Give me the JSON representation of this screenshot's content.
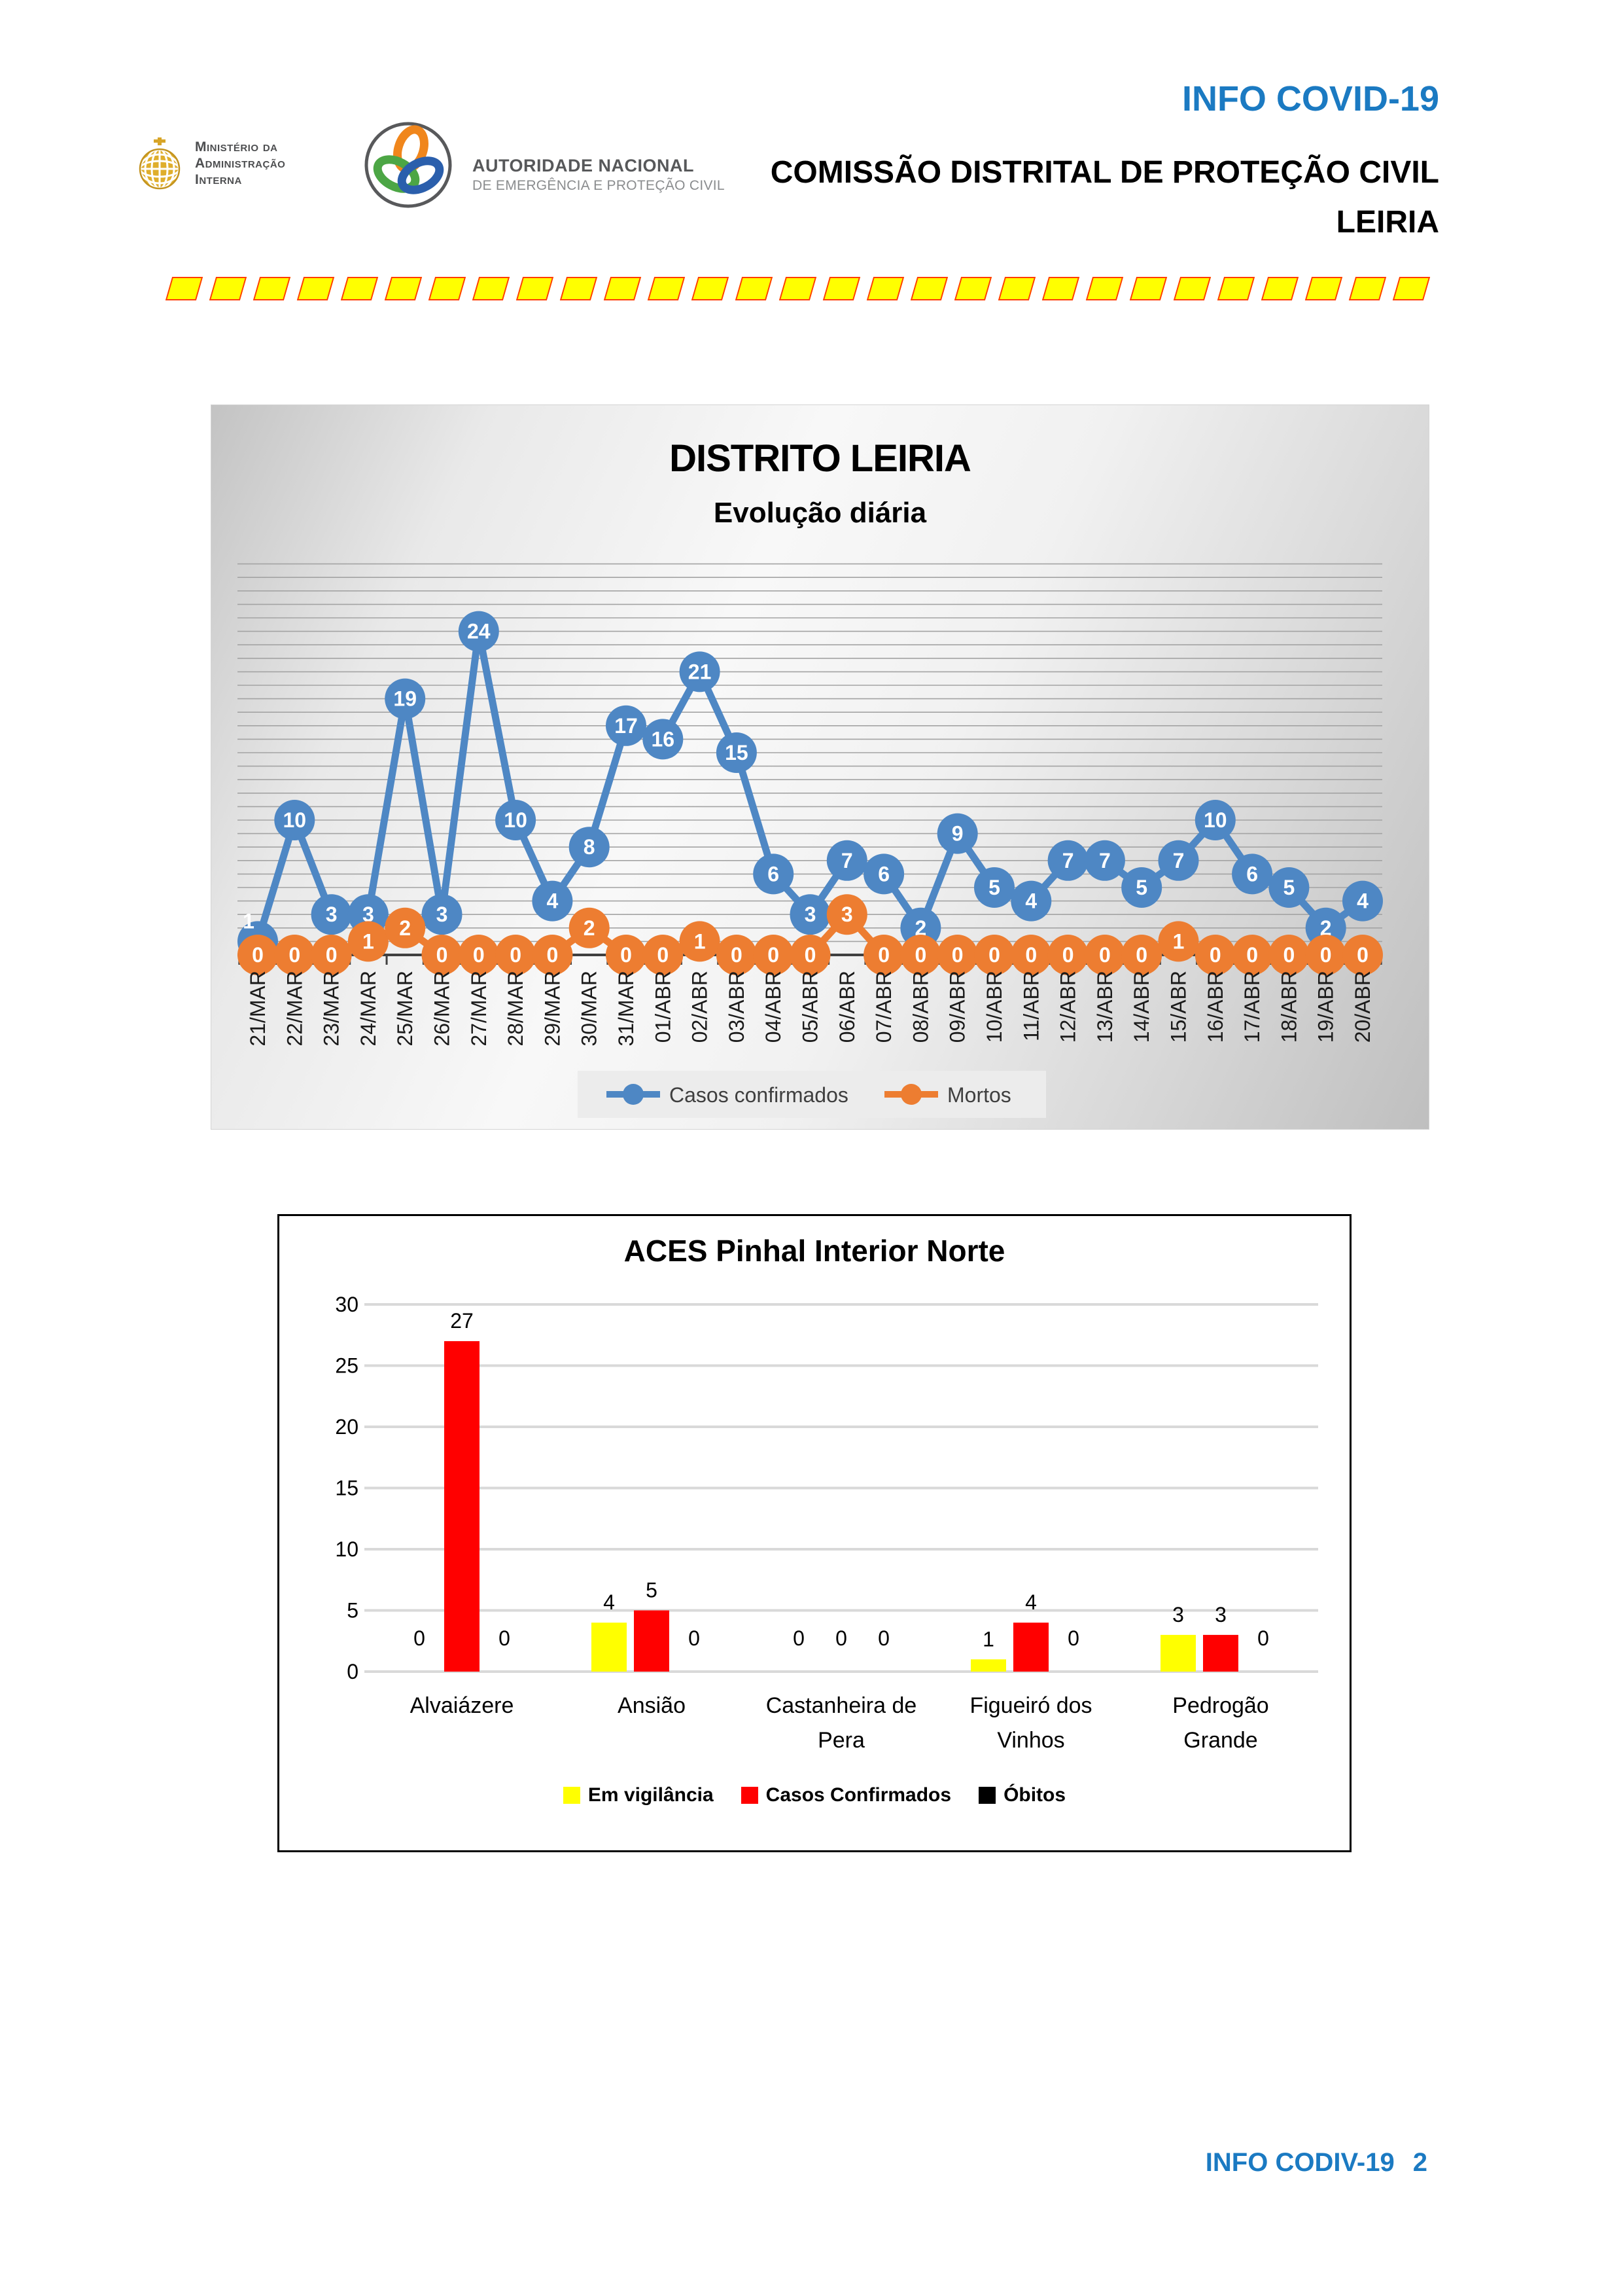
{
  "header": {
    "mai": {
      "lines": [
        "Ministério da",
        "Administração",
        "Interna"
      ]
    },
    "anepc": {
      "title": "AUTORIDADE NACIONAL",
      "subtitle": "DE EMERGÊNCIA E PROTEÇÃO CIVIL"
    },
    "info_title": "INFO COVID-19",
    "commission": "COMISSÃO DISTRITAL DE PROTEÇÃO CIVIL",
    "district": "LEIRIA"
  },
  "divider": {
    "dash_count": 29
  },
  "footer": {
    "label": "INFO CODIV-19",
    "page_number": "2"
  },
  "colors": {
    "header_blue": "#1b7ac2",
    "line_blue": "#4e87c4",
    "line_orange": "#ED7D31",
    "bar_yellow": "#FFFF00",
    "bar_red": "#FF0000",
    "bar_black": "#000000"
  },
  "chart_data": [
    {
      "type": "line",
      "title": "DISTRITO LEIRIA",
      "subtitle": "Evolução diária",
      "categories": [
        "21/MAR",
        "22/MAR",
        "23/MAR",
        "24/MAR",
        "25/MAR",
        "26/MAR",
        "27/MAR",
        "28/MAR",
        "29/MAR",
        "30/MAR",
        "31/MAR",
        "01/ABR",
        "02/ABR",
        "03/ABR",
        "04/ABR",
        "05/ABR",
        "06/ABR",
        "07/ABR",
        "08/ABR",
        "09/ABR",
        "10/ABR",
        "11/ABR",
        "12/ABR",
        "13/ABR",
        "14/ABR",
        "15/ABR",
        "16/ABR",
        "17/ABR",
        "18/ABR",
        "19/ABR",
        "20/ABR"
      ],
      "series": [
        {
          "name": "Casos confirmados",
          "color": "#4e87c4",
          "values": [
            1,
            10,
            3,
            3,
            19,
            3,
            24,
            10,
            4,
            8,
            17,
            16,
            21,
            15,
            6,
            3,
            7,
            6,
            2,
            9,
            5,
            4,
            7,
            7,
            5,
            7,
            10,
            6,
            5,
            2,
            4
          ]
        },
        {
          "name": "Mortos",
          "color": "#ED7D31",
          "values": [
            0,
            0,
            0,
            1,
            2,
            0,
            0,
            0,
            0,
            2,
            0,
            0,
            1,
            0,
            0,
            0,
            3,
            0,
            0,
            0,
            0,
            0,
            0,
            0,
            0,
            1,
            0,
            0,
            0,
            0,
            0
          ]
        }
      ],
      "ylim": [
        0,
        29
      ],
      "grid": true,
      "data_labels": true,
      "legend_position": "bottom"
    },
    {
      "type": "bar",
      "title": "ACES Pinhal Interior Norte",
      "categories": [
        "Alvaiázere",
        "Ansião",
        "Castanheira de Pera",
        "Figueiró dos Vinhos",
        "Pedrogão Grande"
      ],
      "category_label_lines": [
        [
          "Alvaiázere"
        ],
        [
          "Ansião"
        ],
        [
          "Castanheira de",
          "Pera"
        ],
        [
          "Figueiró dos",
          "Vinhos"
        ],
        [
          "Pedrogão",
          "Grande"
        ]
      ],
      "series": [
        {
          "name": "Em vigilância",
          "color": "#FFFF00",
          "values": [
            0,
            4,
            0,
            1,
            3
          ]
        },
        {
          "name": "Casos Confirmados",
          "color": "#FF0000",
          "values": [
            27,
            5,
            0,
            4,
            3
          ]
        },
        {
          "name": "Óbitos",
          "color": "#000000",
          "values": [
            0,
            0,
            0,
            0,
            0
          ]
        }
      ],
      "ylim": [
        0,
        30
      ],
      "yticks": [
        0,
        5,
        10,
        15,
        20,
        25,
        30
      ],
      "grid": true,
      "data_labels": true,
      "legend_position": "bottom"
    }
  ]
}
